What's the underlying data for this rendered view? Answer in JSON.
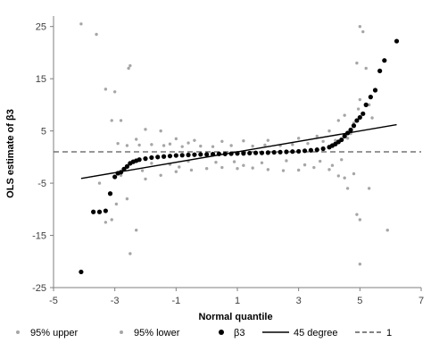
{
  "chart_data": {
    "type": "scatter",
    "title": "",
    "xlabel": "Normal quantile",
    "ylabel": "OLS estimate of β3",
    "xlim": [
      -5,
      7
    ],
    "ylim": [
      -25,
      27
    ],
    "x_ticks": [
      -5,
      -3,
      -1,
      1,
      3,
      5,
      7
    ],
    "y_ticks": [
      25,
      15,
      5,
      -5,
      -15,
      -25
    ],
    "grid": false,
    "legend_position": "bottom",
    "colors": {
      "upper": "#a6a6a6",
      "lower": "#a6a6a6",
      "beta3": "#000000",
      "deg45": "#000000",
      "one": "#595959"
    },
    "series": [
      {
        "name": "95% upper",
        "kind": "scatter",
        "note_points": "representative sample of the dense grey cloud",
        "points": [
          [
            -4.1,
            25.5
          ],
          [
            -3.6,
            23.5
          ],
          [
            -3.3,
            13.0
          ],
          [
            -3.0,
            12.5
          ],
          [
            -2.5,
            17.5
          ],
          [
            -2.55,
            17.0
          ],
          [
            -3.1,
            7.0
          ],
          [
            -2.8,
            7.0
          ],
          [
            -2.0,
            5.3
          ],
          [
            -1.5,
            5.0
          ],
          [
            -2.3,
            3.4
          ],
          [
            -1.0,
            3.5
          ],
          [
            -0.4,
            3.2
          ],
          [
            0.5,
            3.0
          ],
          [
            1.2,
            3.1
          ],
          [
            2.0,
            3.2
          ],
          [
            3.0,
            3.6
          ],
          [
            3.6,
            4.0
          ],
          [
            4.0,
            5.0
          ],
          [
            4.3,
            7.0
          ],
          [
            4.5,
            8.0
          ],
          [
            4.6,
            3.6
          ],
          [
            4.8,
            6.5
          ],
          [
            4.9,
            18.0
          ],
          [
            5.0,
            25.0
          ],
          [
            5.1,
            24.0
          ],
          [
            5.2,
            17.0
          ],
          [
            5.3,
            10.0
          ],
          [
            5.4,
            7.5
          ],
          [
            5.0,
            11.0
          ],
          [
            4.95,
            9.2
          ],
          [
            4.7,
            4.5
          ],
          [
            -2.6,
            2.2
          ],
          [
            -2.2,
            2.3
          ],
          [
            -1.8,
            2.4
          ],
          [
            -1.4,
            2.2
          ],
          [
            -1.2,
            2.5
          ],
          [
            -0.8,
            2.0
          ],
          [
            -0.2,
            2.1
          ],
          [
            0.2,
            2.0
          ],
          [
            0.8,
            2.2
          ],
          [
            1.5,
            2.1
          ],
          [
            1.9,
            2.3
          ],
          [
            2.4,
            2.2
          ],
          [
            2.8,
            2.4
          ],
          [
            3.3,
            2.6
          ],
          [
            3.8,
            3.0
          ],
          [
            4.2,
            3.2
          ],
          [
            -2.9,
            2.6
          ],
          [
            -0.6,
            2.7
          ]
        ]
      },
      {
        "name": "95% lower",
        "kind": "scatter",
        "note_points": "representative sample of the dense grey cloud",
        "points": [
          [
            -3.3,
            -12.5
          ],
          [
            -3.1,
            -12.0
          ],
          [
            -2.95,
            -9.0
          ],
          [
            -2.5,
            -18.5
          ],
          [
            -2.6,
            -8.0
          ],
          [
            -2.3,
            -14.0
          ],
          [
            -2.0,
            -4.2
          ],
          [
            -1.5,
            -3.5
          ],
          [
            -1.0,
            -2.8
          ],
          [
            -0.5,
            -2.5
          ],
          [
            0.0,
            -2.2
          ],
          [
            0.5,
            -2.0
          ],
          [
            1.0,
            -2.2
          ],
          [
            1.5,
            -2.1
          ],
          [
            2.0,
            -2.4
          ],
          [
            2.5,
            -2.6
          ],
          [
            3.0,
            -2.5
          ],
          [
            3.5,
            -2.0
          ],
          [
            4.0,
            -2.4
          ],
          [
            4.3,
            -3.6
          ],
          [
            4.5,
            -4.0
          ],
          [
            4.6,
            -6.0
          ],
          [
            4.8,
            -3.2
          ],
          [
            4.9,
            -11.0
          ],
          [
            5.0,
            -12.0
          ],
          [
            5.0,
            -20.5
          ],
          [
            5.3,
            -6.0
          ],
          [
            5.9,
            -14.0
          ],
          [
            -2.8,
            -3.5
          ],
          [
            -3.5,
            -5.0
          ],
          [
            -2.4,
            -1.0
          ],
          [
            -1.8,
            -1.2
          ],
          [
            -1.2,
            -1.4
          ],
          [
            -0.6,
            -0.8
          ],
          [
            0.3,
            -1.0
          ],
          [
            0.9,
            -0.9
          ],
          [
            1.8,
            -1.1
          ],
          [
            2.6,
            -0.7
          ],
          [
            3.2,
            -1.5
          ],
          [
            3.7,
            -0.8
          ],
          [
            4.1,
            -1.6
          ],
          [
            4.4,
            -0.5
          ],
          [
            -2.1,
            -2.6
          ],
          [
            -0.9,
            -1.9
          ],
          [
            1.2,
            -1.6
          ]
        ]
      },
      {
        "name": "β3",
        "kind": "scatter",
        "points": [
          [
            -4.1,
            -22.0
          ],
          [
            -3.5,
            -10.5
          ],
          [
            -3.7,
            -10.5
          ],
          [
            -3.3,
            -10.3
          ],
          [
            -3.15,
            -7.0
          ],
          [
            -3.0,
            -3.8
          ],
          [
            -2.9,
            -3.1
          ],
          [
            -2.8,
            -2.9
          ],
          [
            -2.7,
            -2.3
          ],
          [
            -2.6,
            -1.8
          ],
          [
            -2.5,
            -1.2
          ],
          [
            -2.4,
            -0.9
          ],
          [
            -2.3,
            -0.7
          ],
          [
            -2.2,
            -0.5
          ],
          [
            -2.0,
            -0.3
          ],
          [
            -1.8,
            -0.1
          ],
          [
            -1.6,
            0.0
          ],
          [
            -1.4,
            0.1
          ],
          [
            -1.2,
            0.2
          ],
          [
            -1.0,
            0.3
          ],
          [
            -0.8,
            0.35
          ],
          [
            -0.6,
            0.4
          ],
          [
            -0.4,
            0.45
          ],
          [
            -0.2,
            0.5
          ],
          [
            0.0,
            0.5
          ],
          [
            0.2,
            0.55
          ],
          [
            0.4,
            0.6
          ],
          [
            0.6,
            0.6
          ],
          [
            0.8,
            0.65
          ],
          [
            1.0,
            0.7
          ],
          [
            1.2,
            0.7
          ],
          [
            1.4,
            0.75
          ],
          [
            1.6,
            0.8
          ],
          [
            1.8,
            0.8
          ],
          [
            2.0,
            0.85
          ],
          [
            2.2,
            0.9
          ],
          [
            2.4,
            0.95
          ],
          [
            2.6,
            1.0
          ],
          [
            2.8,
            1.05
          ],
          [
            3.0,
            1.1
          ],
          [
            3.2,
            1.2
          ],
          [
            3.4,
            1.3
          ],
          [
            3.6,
            1.4
          ],
          [
            3.8,
            1.6
          ],
          [
            4.0,
            1.9
          ],
          [
            4.1,
            2.2
          ],
          [
            4.2,
            2.5
          ],
          [
            4.3,
            2.9
          ],
          [
            4.4,
            3.3
          ],
          [
            4.5,
            4.0
          ],
          [
            4.6,
            4.6
          ],
          [
            4.7,
            5.2
          ],
          [
            4.8,
            6.0
          ],
          [
            4.9,
            7.0
          ],
          [
            5.0,
            7.6
          ],
          [
            5.1,
            8.3
          ],
          [
            5.2,
            10.0
          ],
          [
            5.35,
            11.5
          ],
          [
            5.5,
            12.8
          ],
          [
            5.65,
            16.5
          ],
          [
            5.8,
            18.5
          ],
          [
            6.2,
            22.2
          ]
        ]
      },
      {
        "name": "45 degree",
        "kind": "line",
        "points": [
          [
            -4.1,
            -4.1
          ],
          [
            6.2,
            6.2
          ]
        ]
      },
      {
        "name": "1",
        "kind": "dashed-line",
        "y": 1,
        "x_range": [
          -5,
          7
        ]
      }
    ]
  }
}
